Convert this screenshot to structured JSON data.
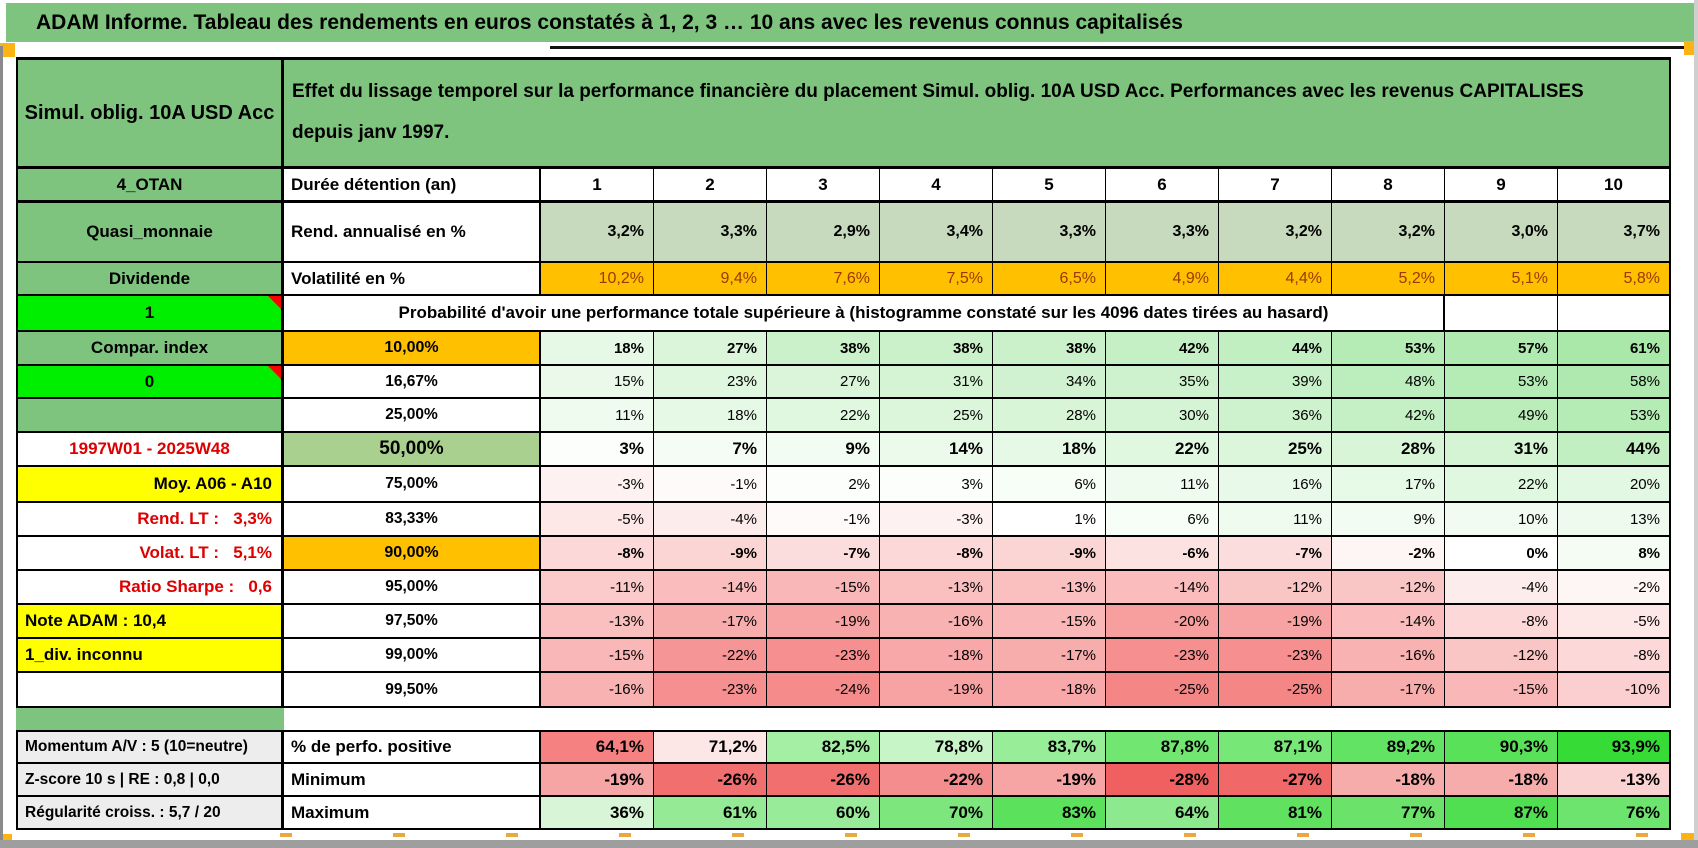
{
  "title": "ADAM Informe. Tableau des rendements en euros constatés à 1, 2, 3 … 10 ans avec les revenus connus capitalisés",
  "colors": {
    "header_green": "#7EC47E",
    "bright_green": "#00EE00",
    "orange": "#FFC000",
    "yellow": "#FFFF00",
    "green_50pct": "#A9D08E",
    "rend_row_green": "#C7DABE",
    "red_label_text": "#DD0000",
    "volatility_text": "#9C3800"
  },
  "table": {
    "years": [
      "1",
      "2",
      "3",
      "4",
      "5",
      "6",
      "7",
      "8",
      "9",
      "10"
    ],
    "rows": [
      {
        "type": "header",
        "left": "Simul. oblig. 10A USD Acc",
        "text": "Effet du lissage temporel sur la performance financière du placement Simul. oblig. 10A USD Acc. Performances avec les revenus CAPITALISES depuis janv 1997."
      },
      {
        "type": "years",
        "left": "4_OTAN",
        "label": "Durée détention (an)"
      },
      {
        "type": "data",
        "kind": "rend",
        "bold": true,
        "left": "Quasi_monnaie",
        "leftStyle": "green",
        "leftAlign": "c",
        "label": "Rend. annualisé en %",
        "labelStyle": "left",
        "values": [
          "3,2%",
          "3,3%",
          "2,9%",
          "3,4%",
          "3,3%",
          "3,3%",
          "3,2%",
          "3,2%",
          "3,0%",
          "3,7%"
        ]
      },
      {
        "type": "data",
        "kind": "volat",
        "left": "Dividende",
        "leftStyle": "green",
        "leftAlign": "c",
        "label": "Volatilité en %",
        "labelStyle": "left",
        "values": [
          "10,2%",
          "9,4%",
          "7,6%",
          "7,5%",
          "6,5%",
          "4,9%",
          "4,4%",
          "5,2%",
          "5,1%",
          "5,8%"
        ]
      },
      {
        "type": "banner",
        "left": "1",
        "text": "Probabilité d'avoir une performance totale supérieure à (histogramme constaté sur les 4096 dates tirées au hasard)"
      },
      {
        "type": "data",
        "kind": "prob",
        "bold": true,
        "left": "Compar. index",
        "leftStyle": "green",
        "leftAlign": "c",
        "label": "10,00%",
        "labelStyle": "orange",
        "values": [
          "18%",
          "27%",
          "38%",
          "38%",
          "38%",
          "42%",
          "44%",
          "53%",
          "57%",
          "61%"
        ]
      },
      {
        "type": "data",
        "kind": "prob",
        "left": "0",
        "leftStyle": "bright",
        "leftAlign": "c",
        "marker": true,
        "label": "16,67%",
        "labelStyle": "center",
        "values": [
          "15%",
          "23%",
          "27%",
          "31%",
          "34%",
          "35%",
          "39%",
          "48%",
          "53%",
          "58%"
        ]
      },
      {
        "type": "data",
        "kind": "prob",
        "left": "",
        "leftStyle": "green",
        "leftAlign": "c",
        "label": "25,00%",
        "labelStyle": "center",
        "values": [
          "11%",
          "18%",
          "22%",
          "25%",
          "28%",
          "30%",
          "36%",
          "42%",
          "49%",
          "53%"
        ]
      },
      {
        "type": "data",
        "kind": "prob",
        "bold": true,
        "big": true,
        "left": "1997W01 - 2025W48",
        "leftStyle": "red",
        "leftAlign": "c",
        "label": "50,00%",
        "labelStyle": "green50",
        "values": [
          "3%",
          "7%",
          "9%",
          "14%",
          "18%",
          "22%",
          "25%",
          "28%",
          "31%",
          "44%"
        ]
      },
      {
        "type": "data",
        "kind": "prob",
        "left": "Moy. A06 - A10",
        "leftStyle": "yellow",
        "leftAlign": "r",
        "label": "75,00%",
        "labelStyle": "center",
        "values": [
          "-3%",
          "-1%",
          "2%",
          "3%",
          "6%",
          "11%",
          "16%",
          "17%",
          "22%",
          "20%"
        ]
      },
      {
        "type": "data",
        "kind": "prob",
        "left": "Rend. LT :   3,3%",
        "leftStyle": "red",
        "leftAlign": "r",
        "label": "83,33%",
        "labelStyle": "center",
        "values": [
          "-5%",
          "-4%",
          "-1%",
          "-3%",
          "1%",
          "6%",
          "11%",
          "9%",
          "10%",
          "13%"
        ]
      },
      {
        "type": "data",
        "kind": "prob",
        "bold": true,
        "left": "Volat. LT :   5,1%",
        "leftStyle": "red",
        "leftAlign": "r",
        "label": "90,00%",
        "labelStyle": "orange",
        "values": [
          "-8%",
          "-9%",
          "-7%",
          "-8%",
          "-9%",
          "-6%",
          "-7%",
          "-2%",
          "0%",
          "8%"
        ]
      },
      {
        "type": "data",
        "kind": "prob",
        "left": "Ratio Sharpe :   0,6",
        "leftStyle": "red",
        "leftAlign": "r",
        "label": "95,00%",
        "labelStyle": "center",
        "values": [
          "-11%",
          "-14%",
          "-15%",
          "-13%",
          "-13%",
          "-14%",
          "-12%",
          "-12%",
          "-4%",
          "-2%"
        ]
      },
      {
        "type": "data",
        "kind": "prob",
        "left": "Note ADAM : 10,4",
        "leftStyle": "yellow",
        "leftAlign": "l",
        "label": "97,50%",
        "labelStyle": "center",
        "values": [
          "-13%",
          "-17%",
          "-19%",
          "-16%",
          "-15%",
          "-20%",
          "-19%",
          "-14%",
          "-8%",
          "-5%"
        ]
      },
      {
        "type": "data",
        "kind": "prob",
        "left": "1_div. inconnu",
        "leftStyle": "yellow",
        "leftAlign": "l",
        "label": "99,00%",
        "labelStyle": "center",
        "values": [
          "-15%",
          "-22%",
          "-23%",
          "-18%",
          "-17%",
          "-23%",
          "-23%",
          "-16%",
          "-12%",
          "-8%"
        ]
      },
      {
        "type": "data",
        "kind": "prob",
        "left": "",
        "leftStyle": "white",
        "leftAlign": "c",
        "label": "99,50%",
        "labelStyle": "center",
        "values": [
          "-16%",
          "-23%",
          "-24%",
          "-19%",
          "-18%",
          "-25%",
          "-25%",
          "-17%",
          "-15%",
          "-10%"
        ]
      },
      {
        "type": "separator"
      },
      {
        "type": "data",
        "kind": "perfo",
        "bold": true,
        "left": "Momentum A/V : 5 (10=neutre)",
        "leftStyle": "gray",
        "leftAlign": "l",
        "label": "% de perfo. positive",
        "labelStyle": "left",
        "values": [
          "64,1%",
          "71,2%",
          "82,5%",
          "78,8%",
          "83,7%",
          "87,8%",
          "87,1%",
          "89,2%",
          "90,3%",
          "93,9%"
        ]
      },
      {
        "type": "data",
        "kind": "min",
        "bold": true,
        "left": "Z-score 10 s | RE : 0,8 | 0,0",
        "leftStyle": "gray",
        "leftAlign": "l",
        "label": "Minimum",
        "labelStyle": "left",
        "values": [
          "-19%",
          "-26%",
          "-26%",
          "-22%",
          "-19%",
          "-28%",
          "-27%",
          "-18%",
          "-18%",
          "-13%"
        ]
      },
      {
        "type": "data",
        "kind": "max",
        "bold": true,
        "left": "Régularité croiss. : 5,7 / 20",
        "leftStyle": "gray",
        "leftAlign": "l",
        "label": "Maximum",
        "labelStyle": "left",
        "values": [
          "36%",
          "61%",
          "60%",
          "70%",
          "83%",
          "64%",
          "81%",
          "77%",
          "87%",
          "76%"
        ]
      }
    ]
  }
}
